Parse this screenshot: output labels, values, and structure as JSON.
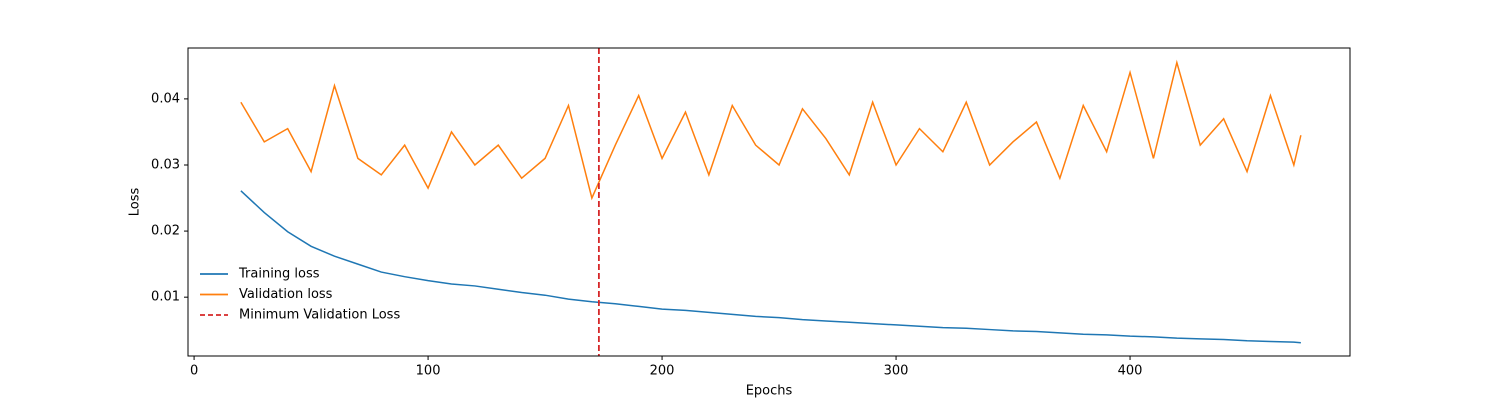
{
  "chart_data": {
    "type": "line",
    "xlabel": "Epochs",
    "ylabel": "Loss",
    "x": [
      20,
      30,
      40,
      50,
      60,
      70,
      80,
      90,
      100,
      110,
      120,
      130,
      140,
      150,
      160,
      170,
      180,
      190,
      200,
      210,
      220,
      230,
      240,
      250,
      260,
      270,
      280,
      290,
      300,
      310,
      320,
      330,
      340,
      350,
      360,
      370,
      380,
      390,
      400,
      410,
      420,
      430,
      440,
      450,
      460,
      470,
      473
    ],
    "series": [
      {
        "name": "Training loss",
        "color": "#1f77b4",
        "values": [
          0.0261,
          0.0228,
          0.0199,
          0.0177,
          0.0162,
          0.015,
          0.0138,
          0.0131,
          0.0125,
          0.012,
          0.0117,
          0.0112,
          0.0107,
          0.0103,
          0.0097,
          0.0093,
          0.009,
          0.0086,
          0.0082,
          0.008,
          0.0077,
          0.0074,
          0.0071,
          0.0069,
          0.0066,
          0.0064,
          0.0062,
          0.006,
          0.0058,
          0.0056,
          0.0054,
          0.0053,
          0.0051,
          0.0049,
          0.0048,
          0.0046,
          0.0044,
          0.0043,
          0.0041,
          0.004,
          0.0038,
          0.0037,
          0.0036,
          0.0034,
          0.0033,
          0.0032,
          0.0031
        ]
      },
      {
        "name": "Validation loss",
        "color": "#ff7f0e",
        "values": [
          0.0395,
          0.0335,
          0.0355,
          0.029,
          0.042,
          0.031,
          0.0285,
          0.033,
          0.0265,
          0.035,
          0.03,
          0.033,
          0.028,
          0.031,
          0.039,
          0.025,
          0.033,
          0.0405,
          0.031,
          0.038,
          0.0285,
          0.039,
          0.033,
          0.03,
          0.0385,
          0.034,
          0.0285,
          0.0395,
          0.03,
          0.0355,
          0.032,
          0.0395,
          0.03,
          0.0335,
          0.0365,
          0.028,
          0.039,
          0.032,
          0.044,
          0.031,
          0.0455,
          0.033,
          0.037,
          0.029,
          0.0405,
          0.03,
          0.0345
        ]
      }
    ],
    "vlines": [
      {
        "x": 173,
        "name": "Minimum Validation Loss",
        "color": "#d62728",
        "style": "dashed"
      }
    ],
    "xlim": [
      -2.6,
      494
    ],
    "xticks": [
      0,
      100,
      200,
      300,
      400
    ],
    "ylim": [
      0.0011,
      0.0477
    ],
    "yticks": [
      0.01,
      0.02,
      0.03,
      0.04
    ],
    "grid": false,
    "legend": "lower left"
  }
}
